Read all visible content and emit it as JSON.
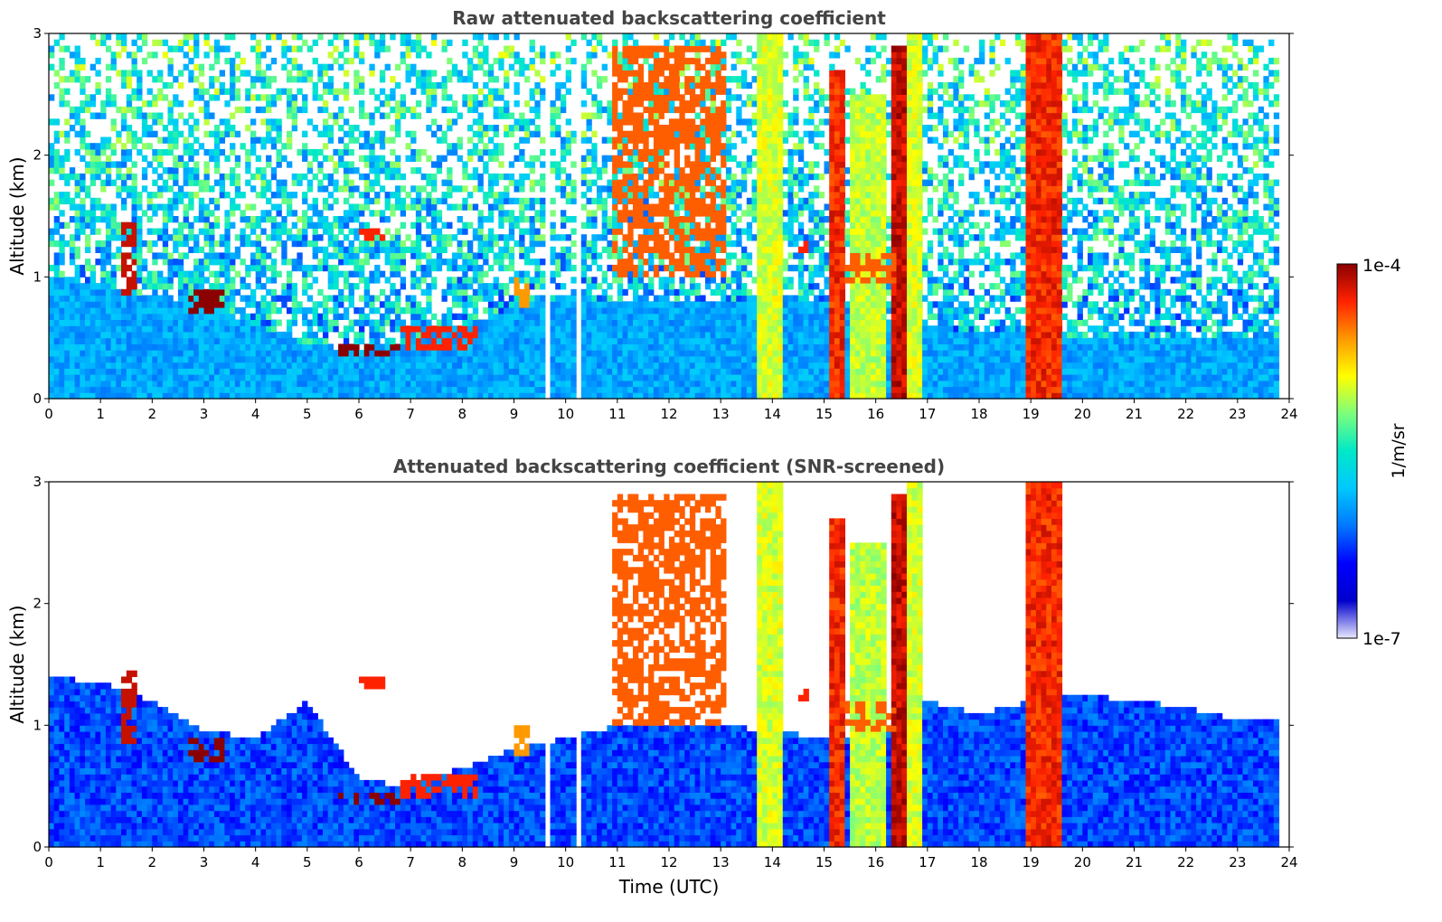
{
  "colors": {
    "colormap": [
      "#ffffff",
      "#0000cc",
      "#0000ff",
      "#0077ff",
      "#00c8ff",
      "#00e8c8",
      "#7cff7c",
      "#ffff00",
      "#ff9900",
      "#ff2200",
      "#8b0000"
    ],
    "axis": "#000000",
    "title": "#444444"
  },
  "chart_data": [
    {
      "type": "heatmap",
      "title": "Raw attenuated backscattering coefficient",
      "xlabel": "",
      "ylabel": "Altitude (km)",
      "xlim": [
        0,
        24
      ],
      "ylim": [
        0,
        3
      ],
      "xticks": [
        "0",
        "1",
        "2",
        "3",
        "4",
        "5",
        "6",
        "7",
        "8",
        "9",
        "10",
        "11",
        "12",
        "13",
        "14",
        "15",
        "16",
        "17",
        "18",
        "19",
        "20",
        "21",
        "22",
        "23",
        "24"
      ],
      "yticks": [
        "0",
        "1",
        "2",
        "3"
      ],
      "data_gaps_hours": [
        [
          9.6,
          9.72
        ],
        [
          10.2,
          10.32
        ],
        [
          23.82,
          24
        ]
      ],
      "boundary_layer_top_km": [
        [
          0,
          1.0
        ],
        [
          1,
          0.95
        ],
        [
          2,
          0.85
        ],
        [
          3,
          0.78
        ],
        [
          4,
          0.6
        ],
        [
          5,
          0.45
        ],
        [
          6,
          0.4
        ],
        [
          7,
          0.48
        ],
        [
          8,
          0.6
        ],
        [
          9,
          0.75
        ],
        [
          10,
          0.85
        ],
        [
          11,
          0.8
        ],
        [
          12,
          0.8
        ],
        [
          13,
          0.8
        ],
        [
          14,
          0.85
        ],
        [
          15,
          0.8
        ],
        [
          16,
          0.7
        ],
        [
          17,
          0.6
        ],
        [
          18,
          0.55
        ],
        [
          19,
          0.55
        ],
        [
          20,
          0.5
        ],
        [
          21,
          0.5
        ],
        [
          22,
          0.5
        ],
        [
          23,
          0.5
        ],
        [
          24,
          0.5
        ]
      ],
      "layers": [
        {
          "t0": 1.4,
          "t1": 1.7,
          "z0": 0.85,
          "z1": 1.45,
          "value": 0.95
        },
        {
          "t0": 2.75,
          "t1": 3.35,
          "z0": 0.72,
          "z1": 0.92,
          "value": 1.0
        },
        {
          "t0": 5.5,
          "t1": 6.8,
          "z0": 0.35,
          "z1": 0.45,
          "value": 1.0
        },
        {
          "t0": 6.8,
          "t1": 8.3,
          "z0": 0.4,
          "z1": 0.6,
          "value": 0.9
        },
        {
          "t0": 6.0,
          "t1": 6.5,
          "z0": 1.3,
          "z1": 1.42,
          "value": 0.9
        },
        {
          "t0": 9.0,
          "t1": 9.3,
          "z0": 0.75,
          "z1": 1.0,
          "value": 0.8
        },
        {
          "t0": 14.5,
          "t1": 14.7,
          "z0": 1.2,
          "z1": 1.3,
          "value": 0.9
        },
        {
          "t0": 15.4,
          "t1": 16.4,
          "z0": 0.95,
          "z1": 1.2,
          "value": 0.85
        },
        {
          "t0": 10.9,
          "t1": 13.1,
          "z0": 1.0,
          "z1": 2.9,
          "value": 0.85
        }
      ],
      "columns": [
        {
          "t0": 13.75,
          "t1": 14.15,
          "z1": 3.0,
          "value": 0.72
        },
        {
          "t0": 15.15,
          "t1": 15.45,
          "z1": 2.7,
          "value": 0.95
        },
        {
          "t0": 15.55,
          "t1": 16.2,
          "z1": 2.5,
          "value": 0.7
        },
        {
          "t0": 16.35,
          "t1": 16.65,
          "z1": 2.9,
          "value": 1.0
        },
        {
          "t0": 16.65,
          "t1": 16.9,
          "z1": 3.0,
          "value": 0.72
        },
        {
          "t0": 18.95,
          "t1": 19.6,
          "z1": 3.0,
          "value": 0.95
        }
      ]
    },
    {
      "type": "heatmap",
      "title": "Attenuated backscattering coefficient (SNR-screened)",
      "xlabel": "Time (UTC)",
      "ylabel": "Altitude (km)",
      "xlim": [
        0,
        24
      ],
      "ylim": [
        0,
        3
      ],
      "xticks": [
        "0",
        "1",
        "2",
        "3",
        "4",
        "5",
        "6",
        "7",
        "8",
        "9",
        "10",
        "11",
        "12",
        "13",
        "14",
        "15",
        "16",
        "17",
        "18",
        "19",
        "20",
        "21",
        "22",
        "23",
        "24"
      ],
      "yticks": [
        "0",
        "1",
        "2",
        "3"
      ],
      "signal_top_km": [
        [
          0,
          1.4
        ],
        [
          1,
          1.35
        ],
        [
          2,
          1.2
        ],
        [
          3,
          0.95
        ],
        [
          4,
          0.9
        ],
        [
          5,
          1.2
        ],
        [
          6,
          0.55
        ],
        [
          7,
          0.5
        ],
        [
          8,
          0.65
        ],
        [
          9,
          0.8
        ],
        [
          10,
          0.9
        ],
        [
          11,
          1.0
        ],
        [
          12,
          1.0
        ],
        [
          13,
          1.0
        ],
        [
          14,
          0.95
        ],
        [
          15,
          0.9
        ],
        [
          16,
          0.9
        ],
        [
          17,
          1.2
        ],
        [
          18,
          1.1
        ],
        [
          19,
          1.2
        ],
        [
          20,
          1.25
        ],
        [
          21,
          1.2
        ],
        [
          22,
          1.15
        ],
        [
          23,
          1.05
        ],
        [
          24,
          1.05
        ]
      ]
    }
  ],
  "colorbar": {
    "label": "1/m/sr",
    "max_label": "1e-4",
    "min_label": "1e-7"
  }
}
